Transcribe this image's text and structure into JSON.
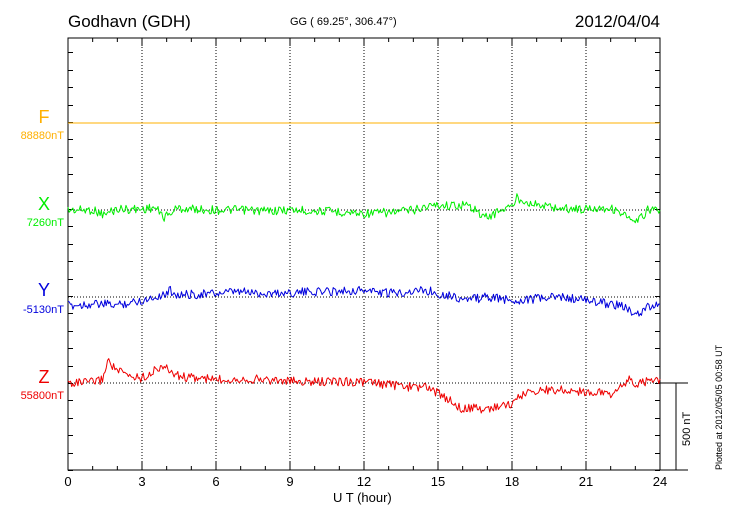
{
  "header": {
    "station": "Godhavn (GDH)",
    "coords": "GG ( 69.25°, 306.47°)",
    "date": "2012/04/04"
  },
  "chart_data": {
    "type": "line",
    "xlabel": "U T (hour)",
    "xlim": [
      0,
      24
    ],
    "x_ticks": [
      "0",
      "3",
      "6",
      "9",
      "12",
      "15",
      "18",
      "21",
      "24"
    ],
    "grid": "dotted vertical lines every 3 hours; dotted baseline per component",
    "scale_bar": {
      "label": "500 nT",
      "nT": 500
    },
    "components": [
      {
        "name": "F",
        "baseline_label": "88880nT",
        "color": "#FFB000",
        "x": [
          0,
          24
        ],
        "values": [
          0,
          0
        ]
      },
      {
        "name": "X",
        "baseline_label": "7260nT",
        "color": "#00EE00",
        "x": [
          0,
          1,
          1.5,
          1.7,
          2,
          3,
          3.5,
          3.9,
          4.1,
          4.4,
          5,
          6,
          7,
          8,
          9,
          10,
          11,
          12,
          13,
          14,
          14.5,
          15,
          15.5,
          16,
          16.5,
          16.8,
          17.2,
          17.5,
          18,
          18.2,
          18.5,
          19,
          20,
          21,
          21.5,
          22,
          22.5,
          22.8,
          23,
          23.5,
          24
        ],
        "values": [
          0,
          0,
          -30,
          -10,
          5,
          5,
          15,
          -40,
          -25,
          10,
          5,
          0,
          0,
          -5,
          0,
          -5,
          -10,
          -20,
          -15,
          0,
          20,
          30,
          25,
          30,
          10,
          -45,
          -30,
          0,
          20,
          70,
          55,
          30,
          10,
          5,
          15,
          10,
          -20,
          -60,
          -80,
          0,
          5
        ]
      },
      {
        "name": "Y",
        "baseline_label": "-5130nT",
        "color": "#0000DD",
        "x": [
          0,
          1,
          2,
          3,
          4,
          4.1,
          4.5,
          5,
          6,
          7,
          8,
          9,
          10,
          11,
          12,
          13,
          14,
          14.5,
          15,
          15.5,
          16,
          16.5,
          17,
          18,
          19,
          20,
          21,
          22,
          22.5,
          23,
          23.5,
          24
        ],
        "values": [
          -50,
          -40,
          -45,
          -20,
          20,
          40,
          10,
          15,
          20,
          30,
          20,
          25,
          30,
          35,
          40,
          20,
          35,
          40,
          20,
          10,
          -15,
          -10,
          0,
          -20,
          -10,
          0,
          -20,
          -40,
          -50,
          -110,
          -60,
          -40
        ]
      },
      {
        "name": "Z",
        "baseline_label": "55800nT",
        "color": "#EE0000",
        "x": [
          0,
          1,
          1.4,
          1.6,
          2,
          2.5,
          3,
          3.5,
          3.8,
          4,
          4.5,
          5,
          6,
          7,
          8,
          9,
          10,
          11,
          12,
          13,
          14,
          14.5,
          15,
          15.5,
          16,
          16.5,
          17,
          17.5,
          18,
          18.5,
          19,
          20,
          21,
          22,
          22.5,
          22.8,
          23,
          23.5,
          24
        ],
        "values": [
          0,
          5,
          20,
          130,
          70,
          40,
          30,
          70,
          100,
          80,
          40,
          30,
          20,
          25,
          20,
          10,
          5,
          10,
          5,
          -10,
          -25,
          -20,
          -60,
          -100,
          -150,
          -145,
          -150,
          -130,
          -120,
          -60,
          -40,
          -40,
          -50,
          -60,
          -20,
          30,
          -10,
          10,
          15
        ]
      }
    ]
  },
  "footer": {
    "plotted": "Plotted at 2012/05/05 00:58 UT"
  }
}
